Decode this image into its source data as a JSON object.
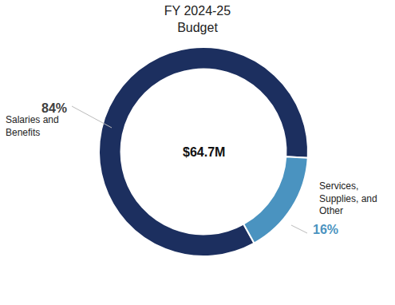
{
  "chart_data": {
    "type": "pie",
    "title": "FY 2024-25 Budget",
    "categories": [
      "Salaries and Benefits",
      "Services, Supplies, and Other"
    ],
    "values": [
      84,
      16
    ],
    "value_labels": [
      "84%",
      "16%"
    ],
    "colors": [
      "#1c2f5f",
      "#4a93c0"
    ],
    "annotations": [
      "$64.7M"
    ],
    "data_labels": true
  }
}
